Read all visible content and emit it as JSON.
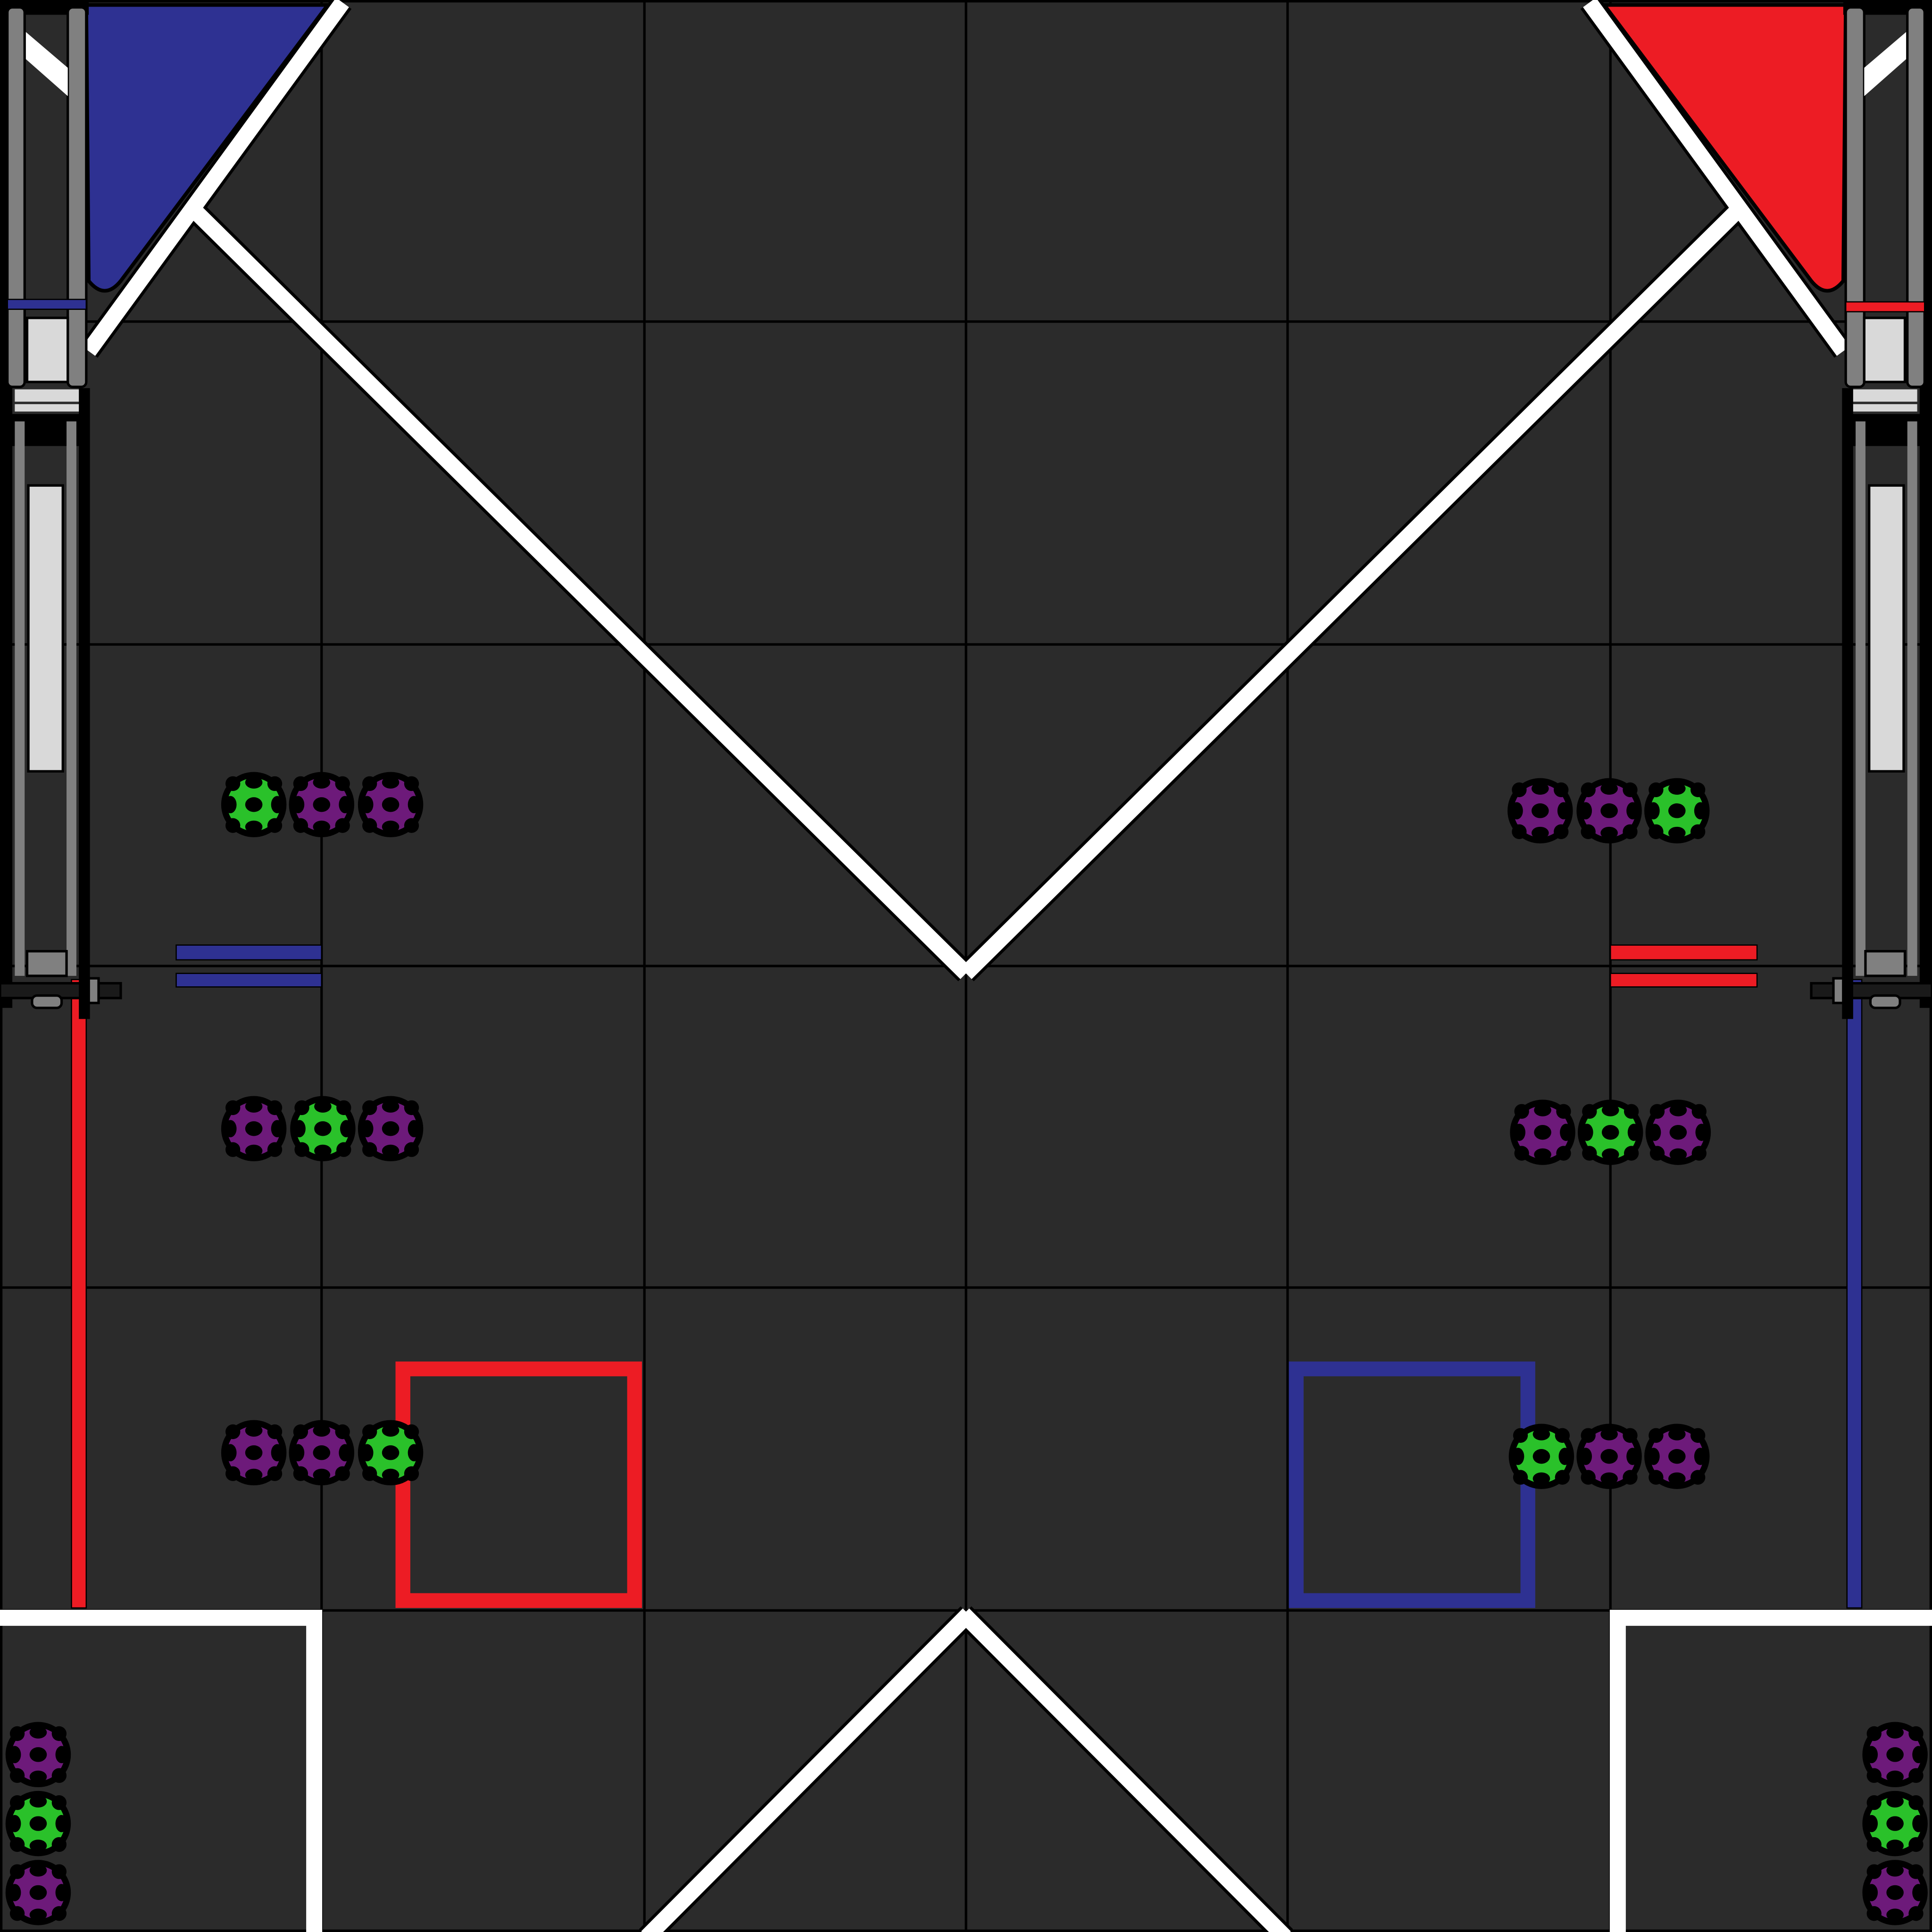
{
  "field": {
    "colors": {
      "tile": "#2b2b2b",
      "grid_line": "#000000",
      "tape_white": "#ffffff",
      "alliance_red": "#ed1c24",
      "alliance_blue": "#2e3192",
      "artifact_green": "#2ac12a",
      "artifact_purple": "#6d1a7a",
      "rail_gray": "#808080",
      "panel_light": "#d9d9d9"
    },
    "tiles_per_side": 6
  },
  "goals": [
    {
      "alliance": "blue",
      "corner": "top-left"
    },
    {
      "alliance": "red",
      "corner": "top-right"
    }
  ],
  "artifact_groups": [
    {
      "side": "left",
      "row": 1,
      "colors": [
        "green",
        "purple",
        "purple"
      ]
    },
    {
      "side": "left",
      "row": 2,
      "colors": [
        "purple",
        "green",
        "purple"
      ]
    },
    {
      "side": "left",
      "row": 3,
      "colors": [
        "purple",
        "purple",
        "green"
      ]
    },
    {
      "side": "right",
      "row": 1,
      "colors": [
        "purple",
        "purple",
        "green"
      ]
    },
    {
      "side": "right",
      "row": 2,
      "colors": [
        "purple",
        "green",
        "purple"
      ]
    },
    {
      "side": "right",
      "row": 3,
      "colors": [
        "green",
        "purple",
        "purple"
      ]
    },
    {
      "side": "bottom-left-corner",
      "colors": [
        "purple",
        "green",
        "purple"
      ]
    },
    {
      "side": "bottom-right-corner",
      "colors": [
        "purple",
        "green",
        "purple"
      ]
    }
  ]
}
